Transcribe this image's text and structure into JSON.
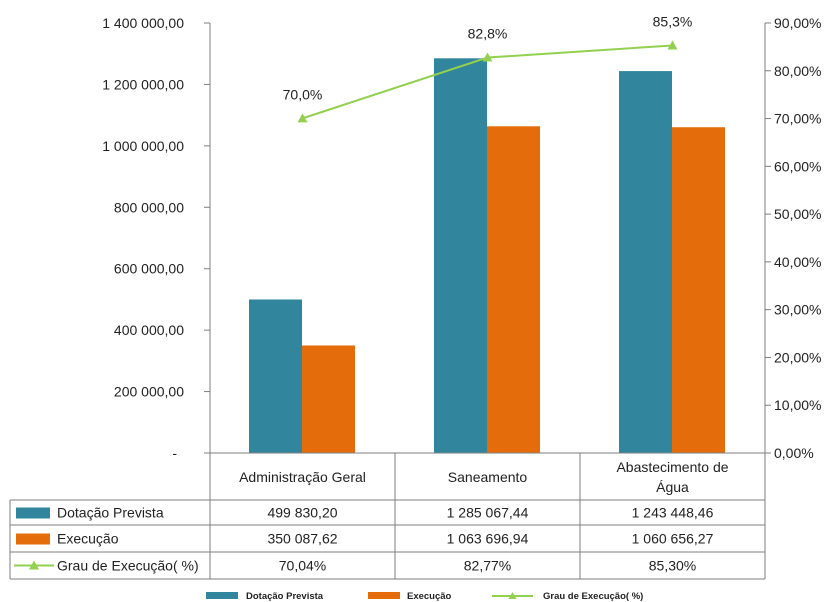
{
  "chart_data": {
    "type": "bar",
    "categories": [
      "Administração Geral",
      "Saneamento",
      "Abastecimento de Água"
    ],
    "category_lines": [
      [
        "Administração Geral"
      ],
      [
        "Saneamento"
      ],
      [
        "Abastecimento de",
        "Água"
      ]
    ],
    "series": [
      {
        "name": "Dotação Prevista",
        "type": "bar",
        "axis": "left",
        "color": "#31859C",
        "values": [
          499830.2,
          1285067.44,
          1243448.46
        ],
        "table_labels": [
          "499 830,20",
          "1 285 067,44",
          "1 243 448,46"
        ]
      },
      {
        "name": "Execução",
        "type": "bar",
        "axis": "left",
        "color": "#E46C0A",
        "values": [
          350087.62,
          1063696.94,
          1060656.27
        ],
        "table_labels": [
          "350 087,62",
          "1 063 696,94",
          "1 060 656,27"
        ]
      },
      {
        "name": "Grau de Execução( %)",
        "type": "line",
        "axis": "right",
        "color": "#92D050",
        "marker": "triangle",
        "values": [
          70.04,
          82.77,
          85.3
        ],
        "table_labels": [
          "70,04%",
          "82,77%",
          "85,30%"
        ],
        "data_labels": [
          "70,0%",
          "82,8%",
          "85,3%"
        ]
      }
    ],
    "y_left": {
      "min": 0,
      "max": 1400000,
      "step": 200000,
      "ticks": [
        "-",
        "200 000,00",
        "400 000,00",
        "600 000,00",
        "800 000,00",
        "1 000 000,00",
        "1 200 000,00",
        "1 400 000,00"
      ]
    },
    "y_right": {
      "min": 0,
      "max": 90,
      "step": 10,
      "ticks": [
        "0,00%",
        "10,00%",
        "20,00%",
        "30,00%",
        "40,00%",
        "50,00%",
        "60,00%",
        "70,00%",
        "80,00%",
        "90,00%"
      ]
    },
    "grid": false,
    "legend_position": "bottom",
    "data_table": true
  }
}
